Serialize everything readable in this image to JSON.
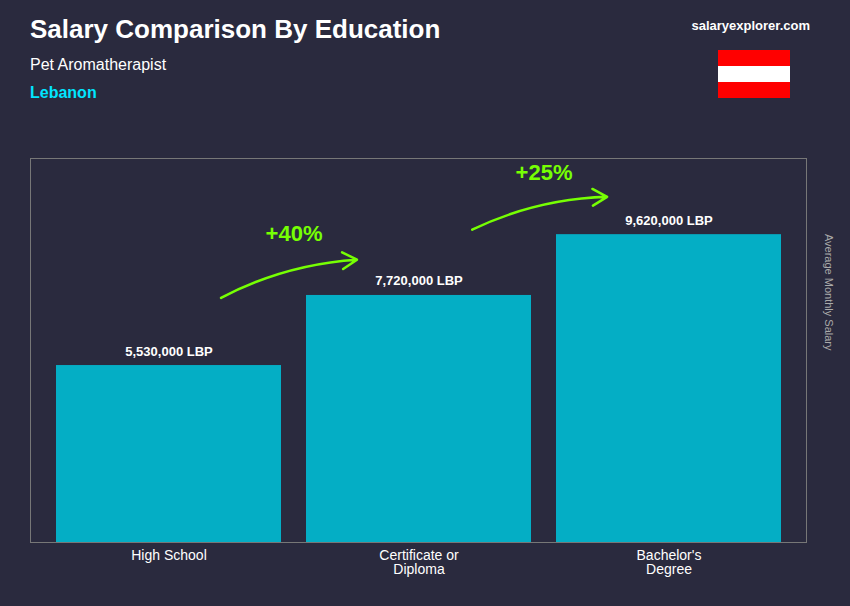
{
  "chart_data": {
    "type": "bar",
    "title": "Salary Comparison By Education",
    "subtitle": [
      "Pet Aromatherapist",
      "Lebanon"
    ],
    "source": "salaryexplorer.com",
    "ylabel": "Average Monthly Salary",
    "categories": [
      "High School",
      "Certificate or\nDiploma",
      "Bachelor's\nDegree"
    ],
    "values": [
      5530000,
      7720000,
      9620000
    ],
    "value_labels": [
      "5,530,000 LBP",
      "7,720,000 LBP",
      "9,620,000 LBP"
    ],
    "data_labels": true,
    "annotations": [
      "+40%",
      "+25%"
    ],
    "color": "#00bcd4",
    "ylim": [
      0,
      12000000
    ],
    "yticks": [],
    "tick_labels": "x",
    "grid": false
  }
}
